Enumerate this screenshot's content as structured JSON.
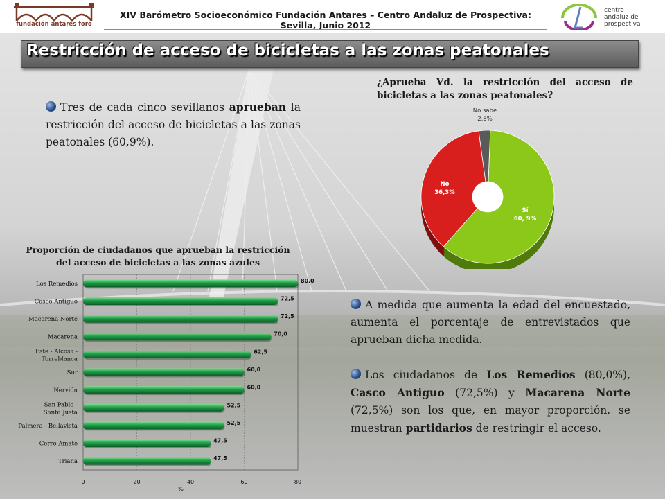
{
  "header": {
    "title": "XIV Barómetro Socioeconómico Fundación Antares – Centro Andaluz de Prospectiva: Sevilla, Junio 2012",
    "logo_left_text": "fundación antares foro",
    "logo_right_text": [
      "centro",
      "andaluz de",
      "prospectiva"
    ]
  },
  "slide": {
    "title": "Restricción de acceso de bicicletas a las zonas peatonales"
  },
  "text": {
    "para1": [
      "Tres de cada cinco sevillanos ",
      "aprueban",
      " la restricción del acceso de bicicletas a las zonas peatonales (60,9%)."
    ],
    "para2": "A medida que aumenta la edad del encuestado, aumenta el porcentaje de entrevistados que aprueban dicha medida.",
    "para3": [
      "Los ciudadanos de ",
      "Los Remedios",
      " (80,0%), ",
      "Casco Antiguo",
      " (72,5%) y ",
      "Macarena Norte",
      " (72,5%) son los que, en mayor proporción, se muestran ",
      "partidarios",
      " de restringir el acceso."
    ]
  },
  "colors": {
    "bar_green": "#1e9e4a",
    "pie_yes": "#8cc81a",
    "pie_no": "#d91e1e",
    "pie_dk": "#5a5a5a",
    "title_bar": "#6f6f6f"
  },
  "chart_data": [
    {
      "type": "pie",
      "title": "¿Aprueba Vd. la restricción del acceso de bicicletas a las zonas peatonales?",
      "slices": [
        {
          "name": "Sí",
          "label": "60, 9%",
          "value": 60.9
        },
        {
          "name": "No",
          "label": "36,3%",
          "value": 36.3
        },
        {
          "name": "No sabe",
          "label": "2,8%",
          "value": 2.8
        }
      ],
      "style": "donut-3d"
    },
    {
      "type": "bar",
      "orientation": "horizontal",
      "title": "Proporción de ciudadanos que aprueban la restricción del acceso de bicicletas a las zonas azules",
      "categories": [
        "Los Remedios",
        "Casco Antiguo",
        "Macarena Norte",
        "Macarena",
        "Este - Alcosa - Torreblanca",
        "Sur",
        "Nervión",
        "San Pablo - Santa Justa",
        "Palmera - Bellavista",
        "Cerro Amate",
        "Triana"
      ],
      "values": [
        80.0,
        72.5,
        72.5,
        70.0,
        62.5,
        60.0,
        60.0,
        52.5,
        52.5,
        47.5,
        47.5
      ],
      "value_labels": [
        "80,0",
        "72,5",
        "72,5",
        "70,0",
        "62,5",
        "60,0",
        "60,0",
        "52,5",
        "52,5",
        "47,5",
        "47,5"
      ],
      "xlabel": "%",
      "xlim": [
        0,
        80
      ],
      "xticks": [
        0,
        20,
        40,
        60,
        80
      ],
      "grid": true
    }
  ]
}
